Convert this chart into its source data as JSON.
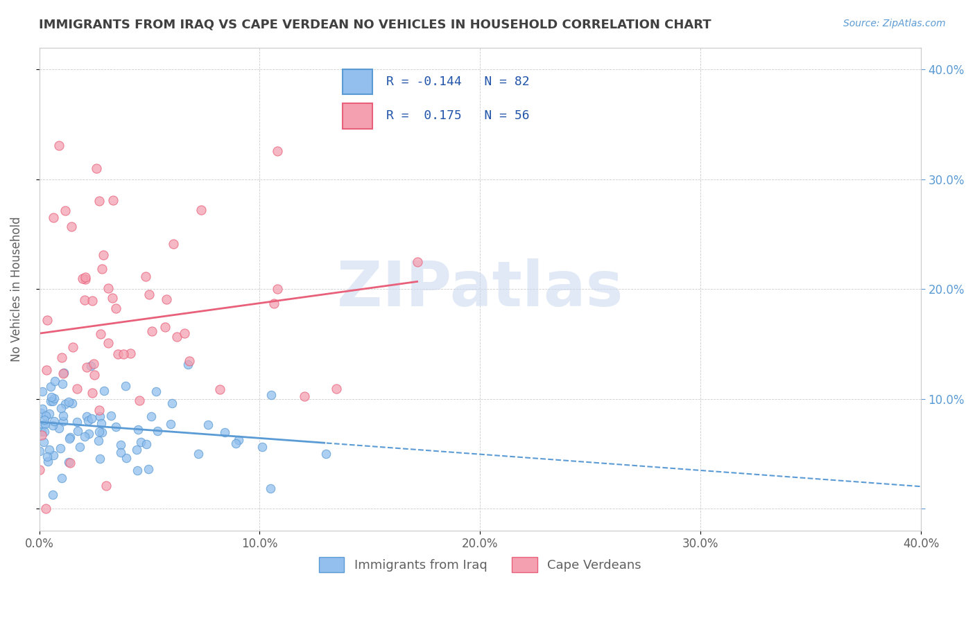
{
  "title": "IMMIGRANTS FROM IRAQ VS CAPE VERDEAN NO VEHICLES IN HOUSEHOLD CORRELATION CHART",
  "source_text": "Source: ZipAtlas.com",
  "ylabel": "No Vehicles in Household",
  "xlim": [
    0.0,
    0.4
  ],
  "ylim": [
    -0.02,
    0.42
  ],
  "yticks": [
    0.0,
    0.1,
    0.2,
    0.3,
    0.4
  ],
  "ytick_labels": [
    "",
    "10.0%",
    "20.0%",
    "30.0%",
    "40.0%"
  ],
  "xticks": [
    0.0,
    0.1,
    0.2,
    0.3,
    0.4
  ],
  "xtick_labels": [
    "0.0%",
    "10.0%",
    "20.0%",
    "30.0%",
    "40.0%"
  ],
  "blue_color": "#92BFED",
  "pink_color": "#F4A0B0",
  "blue_line_color": "#5B9BD5",
  "pink_line_color": "#E8607A",
  "R_blue": -0.144,
  "N_blue": 82,
  "R_pink": 0.175,
  "N_pink": 56,
  "watermark": "ZIPatlas",
  "legend_label_blue": "Immigrants from Iraq",
  "legend_label_pink": "Cape Verdeans",
  "blue_seed": 42,
  "pink_seed": 7,
  "title_color": "#404040",
  "axis_color": "#606060",
  "grid_color": "#CCCCCC",
  "right_ytick_color": "#5B9BD5",
  "legend_text_color": "#2255AA"
}
